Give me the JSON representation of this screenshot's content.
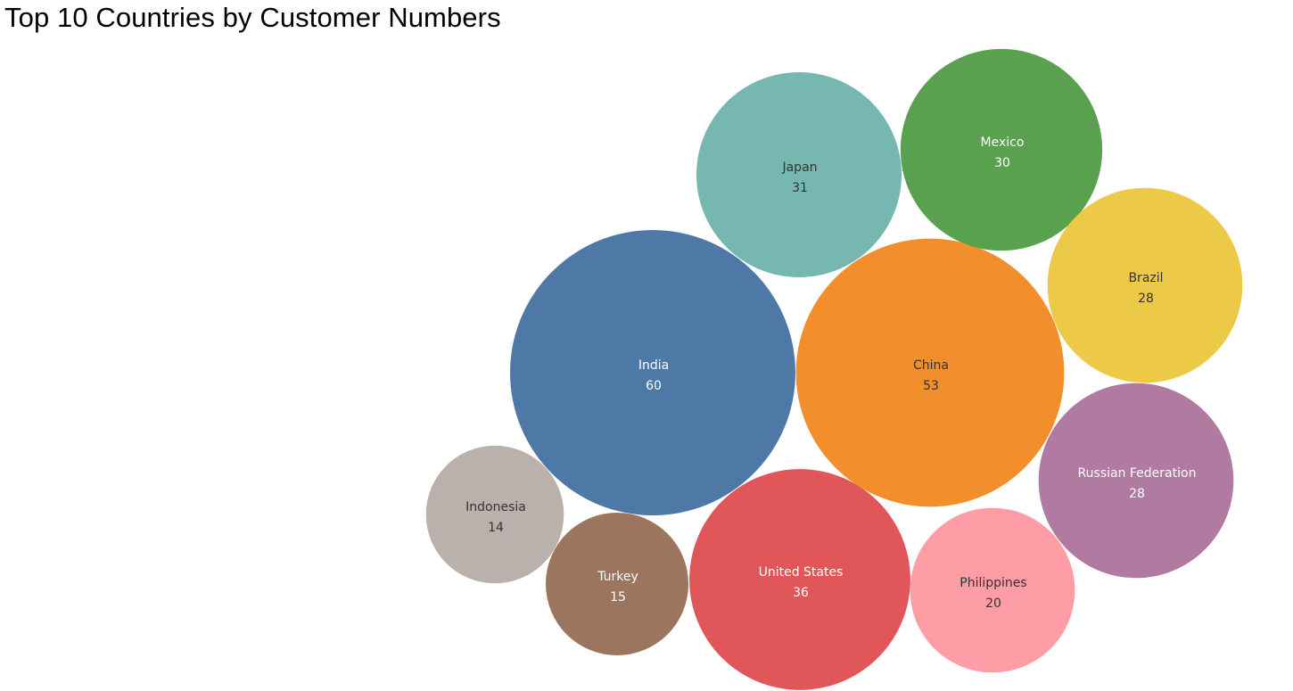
{
  "title": "Top 10 Countries by Customer Numbers",
  "chart_data": {
    "type": "bubble",
    "title": "Top 10 Countries by Customer Numbers",
    "series": [
      {
        "name": "India",
        "value": 60,
        "color": "#4E79A7",
        "label_color": "#ffffff"
      },
      {
        "name": "China",
        "value": 53,
        "color": "#F28E2B",
        "label_color": "#333333"
      },
      {
        "name": "United States",
        "value": 36,
        "color": "#E15759",
        "label_color": "#ffffff"
      },
      {
        "name": "Japan",
        "value": 31,
        "color": "#76B7B2",
        "label_color": "#333333"
      },
      {
        "name": "Mexico",
        "value": 30,
        "color": "#59A14F",
        "label_color": "#ffffff"
      },
      {
        "name": "Brazil",
        "value": 28,
        "color": "#EDC948",
        "label_color": "#333333"
      },
      {
        "name": "Russian Federation",
        "value": 28,
        "color": "#B07AA1",
        "label_color": "#ffffff"
      },
      {
        "name": "Philippines",
        "value": 20,
        "color": "#FF9DA7",
        "label_color": "#333333"
      },
      {
        "name": "Turkey",
        "value": 15,
        "color": "#9C755F",
        "label_color": "#ffffff"
      },
      {
        "name": "Indonesia",
        "value": 14,
        "color": "#BAB0AC",
        "label_color": "#333333"
      }
    ]
  }
}
